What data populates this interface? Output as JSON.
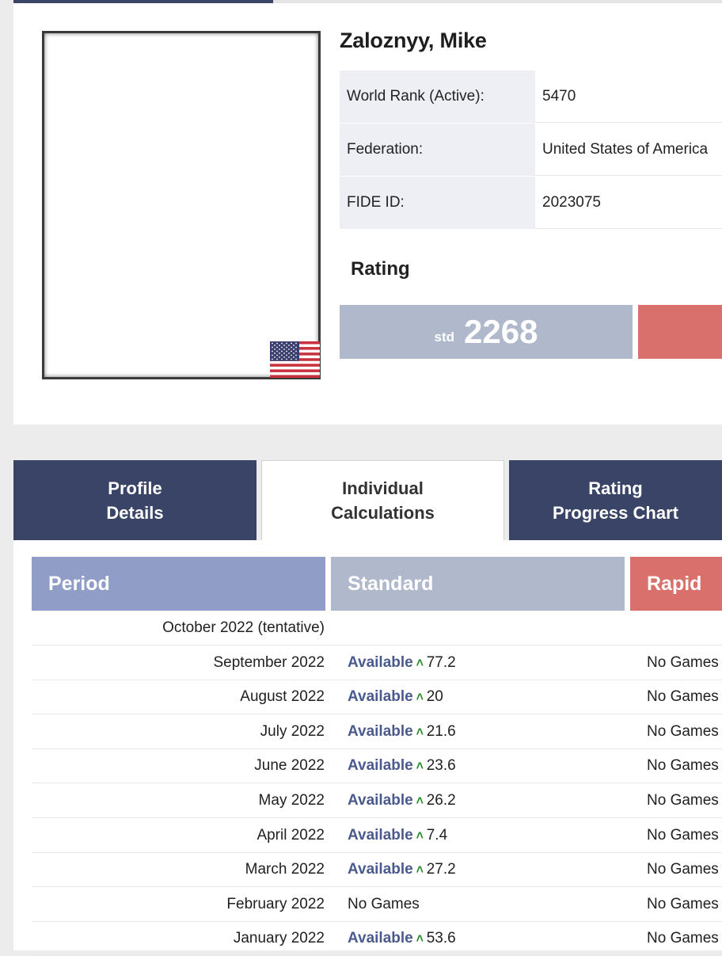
{
  "player": {
    "name": "Zaloznyy, Mike",
    "info": [
      {
        "label": "World Rank (Active):",
        "value": "5470"
      },
      {
        "label": "Federation:",
        "value": "United States of America"
      },
      {
        "label": "FIDE ID:",
        "value": "2023075"
      }
    ],
    "flag_icon": "usa-flag-icon"
  },
  "rating": {
    "title": "Rating",
    "std_label": "std",
    "std_value": "2268"
  },
  "tabs": [
    {
      "line1": "Profile",
      "line2": "Details"
    },
    {
      "line1": "Individual",
      "line2": "Calculations"
    },
    {
      "line1": "Rating",
      "line2": "Progress Chart"
    }
  ],
  "table": {
    "headers": {
      "period": "Period",
      "standard": "Standard",
      "rapid": "Rapid"
    },
    "available_label": "Available",
    "arrow_icon": "arrow-up-icon",
    "rows": [
      {
        "period": "October 2022 (tentative)",
        "std_status": "",
        "std_value": "",
        "rapid": ""
      },
      {
        "period": "September 2022",
        "std_status": "Available",
        "std_value": "77.2",
        "rapid": "No Games"
      },
      {
        "period": "August 2022",
        "std_status": "Available",
        "std_value": "20",
        "rapid": "No Games"
      },
      {
        "period": "July 2022",
        "std_status": "Available",
        "std_value": "21.6",
        "rapid": "No Games"
      },
      {
        "period": "June 2022",
        "std_status": "Available",
        "std_value": "23.6",
        "rapid": "No Games"
      },
      {
        "period": "May 2022",
        "std_status": "Available",
        "std_value": "26.2",
        "rapid": "No Games"
      },
      {
        "period": "April 2022",
        "std_status": "Available",
        "std_value": "7.4",
        "rapid": "No Games"
      },
      {
        "period": "March 2022",
        "std_status": "Available",
        "std_value": "27.2",
        "rapid": "No Games"
      },
      {
        "period": "February 2022",
        "std_status": "No Games",
        "std_value": "",
        "rapid": "No Games"
      },
      {
        "period": "January 2022",
        "std_status": "Available",
        "std_value": "53.6",
        "rapid": "No Games"
      }
    ]
  },
  "colors": {
    "navy": "#394466",
    "period_header": "#8f9dc7",
    "standard_header": "#b0b8cc",
    "rapid_header": "#d9706b",
    "available_text": "#4a5a8c",
    "arrow_green": "#2a8a2a"
  }
}
